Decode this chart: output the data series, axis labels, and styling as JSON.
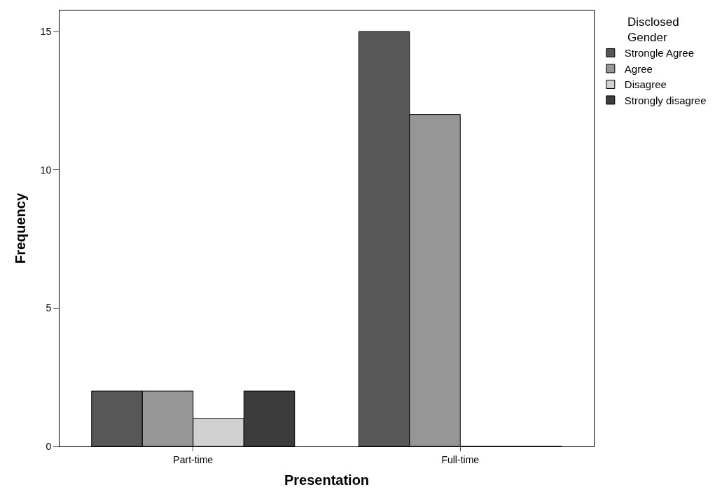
{
  "chart_data": {
    "type": "bar",
    "xlabel": "Presentation",
    "ylabel": "Frequency",
    "legend_title": "Disclosed\nGender",
    "legend": "top right",
    "categories": [
      "Part-time",
      "Full-time"
    ],
    "series": [
      {
        "name": "Strongle Agree",
        "color": "#575757",
        "values": [
          2,
          15
        ]
      },
      {
        "name": "Agree",
        "color": "#969696",
        "values": [
          2,
          12
        ]
      },
      {
        "name": "Disagree",
        "color": "#d0d0d0",
        "values": [
          1,
          0
        ]
      },
      {
        "name": "Strongly disagree",
        "color": "#3c3c3c",
        "values": [
          2,
          0
        ]
      }
    ],
    "ylim": [
      0,
      15.76
    ],
    "yticks": [
      0,
      5,
      10,
      15
    ]
  }
}
